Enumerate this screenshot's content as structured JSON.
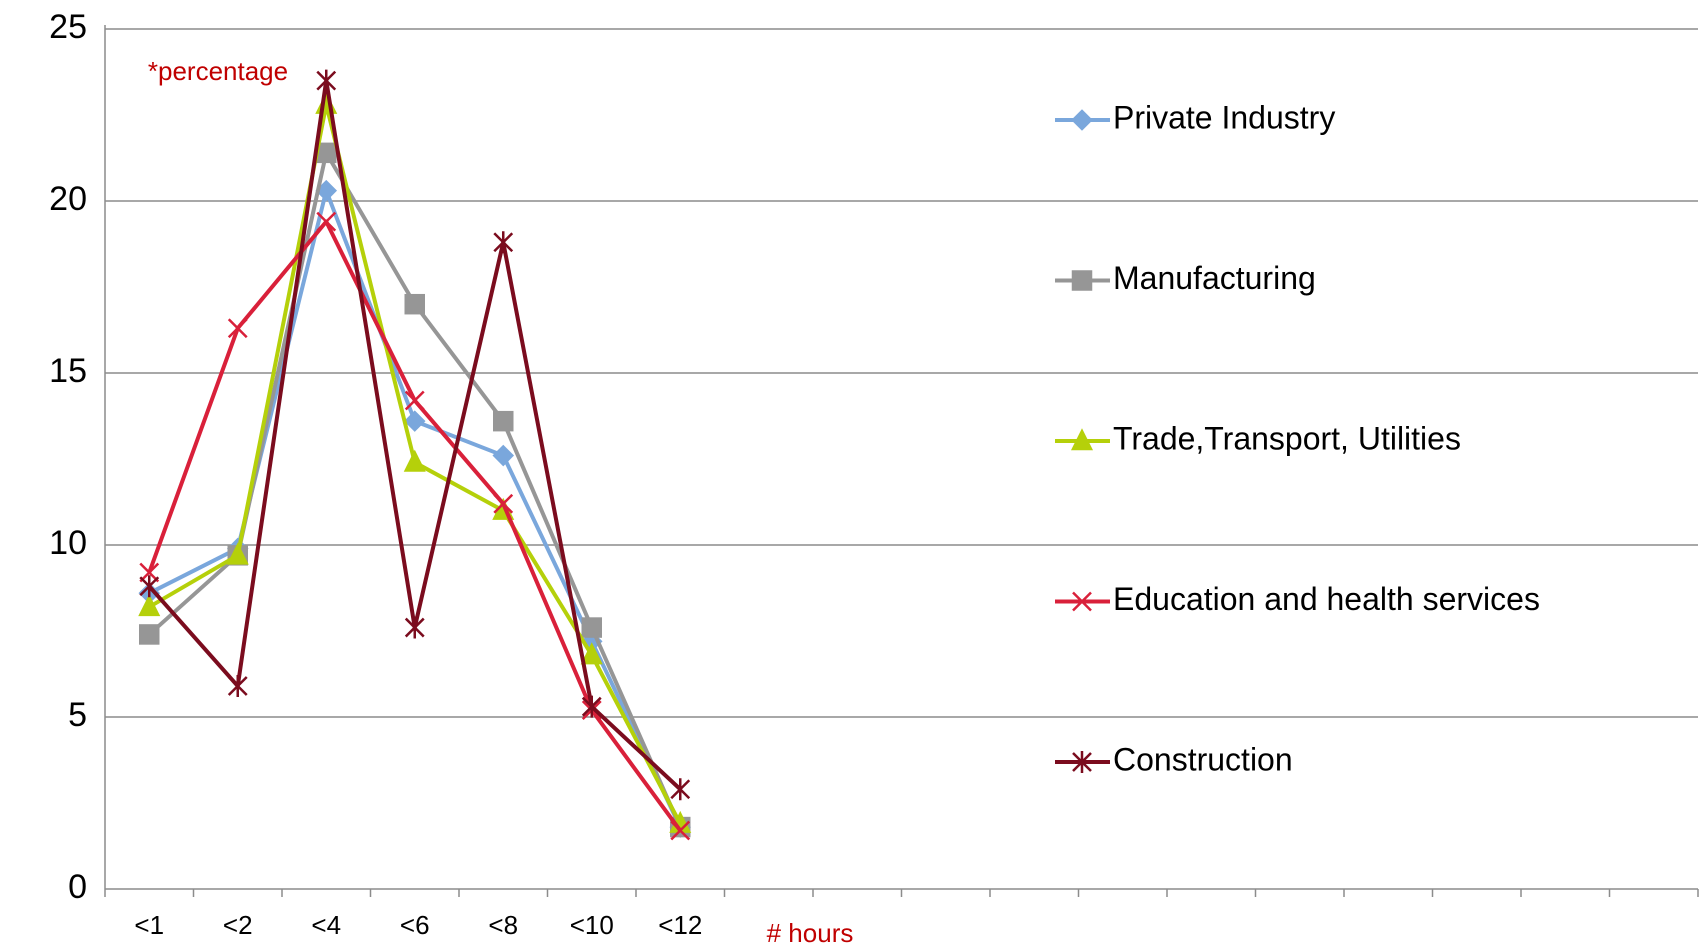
{
  "chart_data": {
    "type": "line",
    "annotation": "*percentage",
    "x_label": "# hours",
    "categories": [
      "<1",
      "<2",
      "<4",
      "<6",
      "<8",
      "<10",
      "<12",
      null,
      null,
      null,
      null,
      null,
      null,
      null,
      null,
      null,
      null,
      null
    ],
    "series": [
      {
        "name": "Private Industry",
        "color": "#7aa7dc",
        "marker": "diamond",
        "values": [
          8.6,
          9.9,
          20.3,
          13.6,
          12.6,
          7.2,
          1.8,
          null,
          null,
          null,
          null,
          null,
          null,
          null,
          null,
          null,
          null,
          null
        ]
      },
      {
        "name": "Manufacturing",
        "color": "#969696",
        "marker": "square",
        "values": [
          7.4,
          9.7,
          21.4,
          17.0,
          13.6,
          7.6,
          1.8,
          null,
          null,
          null,
          null,
          null,
          null,
          null,
          null,
          null,
          null,
          null
        ]
      },
      {
        "name": "Trade,Transport, Utilities",
        "color": "#b5d00a",
        "marker": "triangle",
        "values": [
          8.2,
          9.7,
          22.8,
          12.4,
          11.0,
          6.8,
          1.9,
          null,
          null,
          null,
          null,
          null,
          null,
          null,
          null,
          null,
          null,
          null
        ]
      },
      {
        "name": "Education and health services",
        "color": "#d9203a",
        "marker": "x",
        "values": [
          9.2,
          16.3,
          19.4,
          14.2,
          11.2,
          5.2,
          1.7,
          null,
          null,
          null,
          null,
          null,
          null,
          null,
          null,
          null,
          null,
          null
        ]
      },
      {
        "name": "Construction",
        "color": "#7b0c1e",
        "marker": "star",
        "values": [
          8.8,
          5.9,
          23.5,
          7.6,
          18.8,
          5.3,
          2.9,
          null,
          null,
          null,
          null,
          null,
          null,
          null,
          null,
          null,
          null,
          null
        ]
      }
    ],
    "ylim": [
      0,
      25
    ],
    "yticks": [
      0,
      5,
      10,
      15,
      20,
      25
    ],
    "grid": true,
    "legend": "right"
  }
}
